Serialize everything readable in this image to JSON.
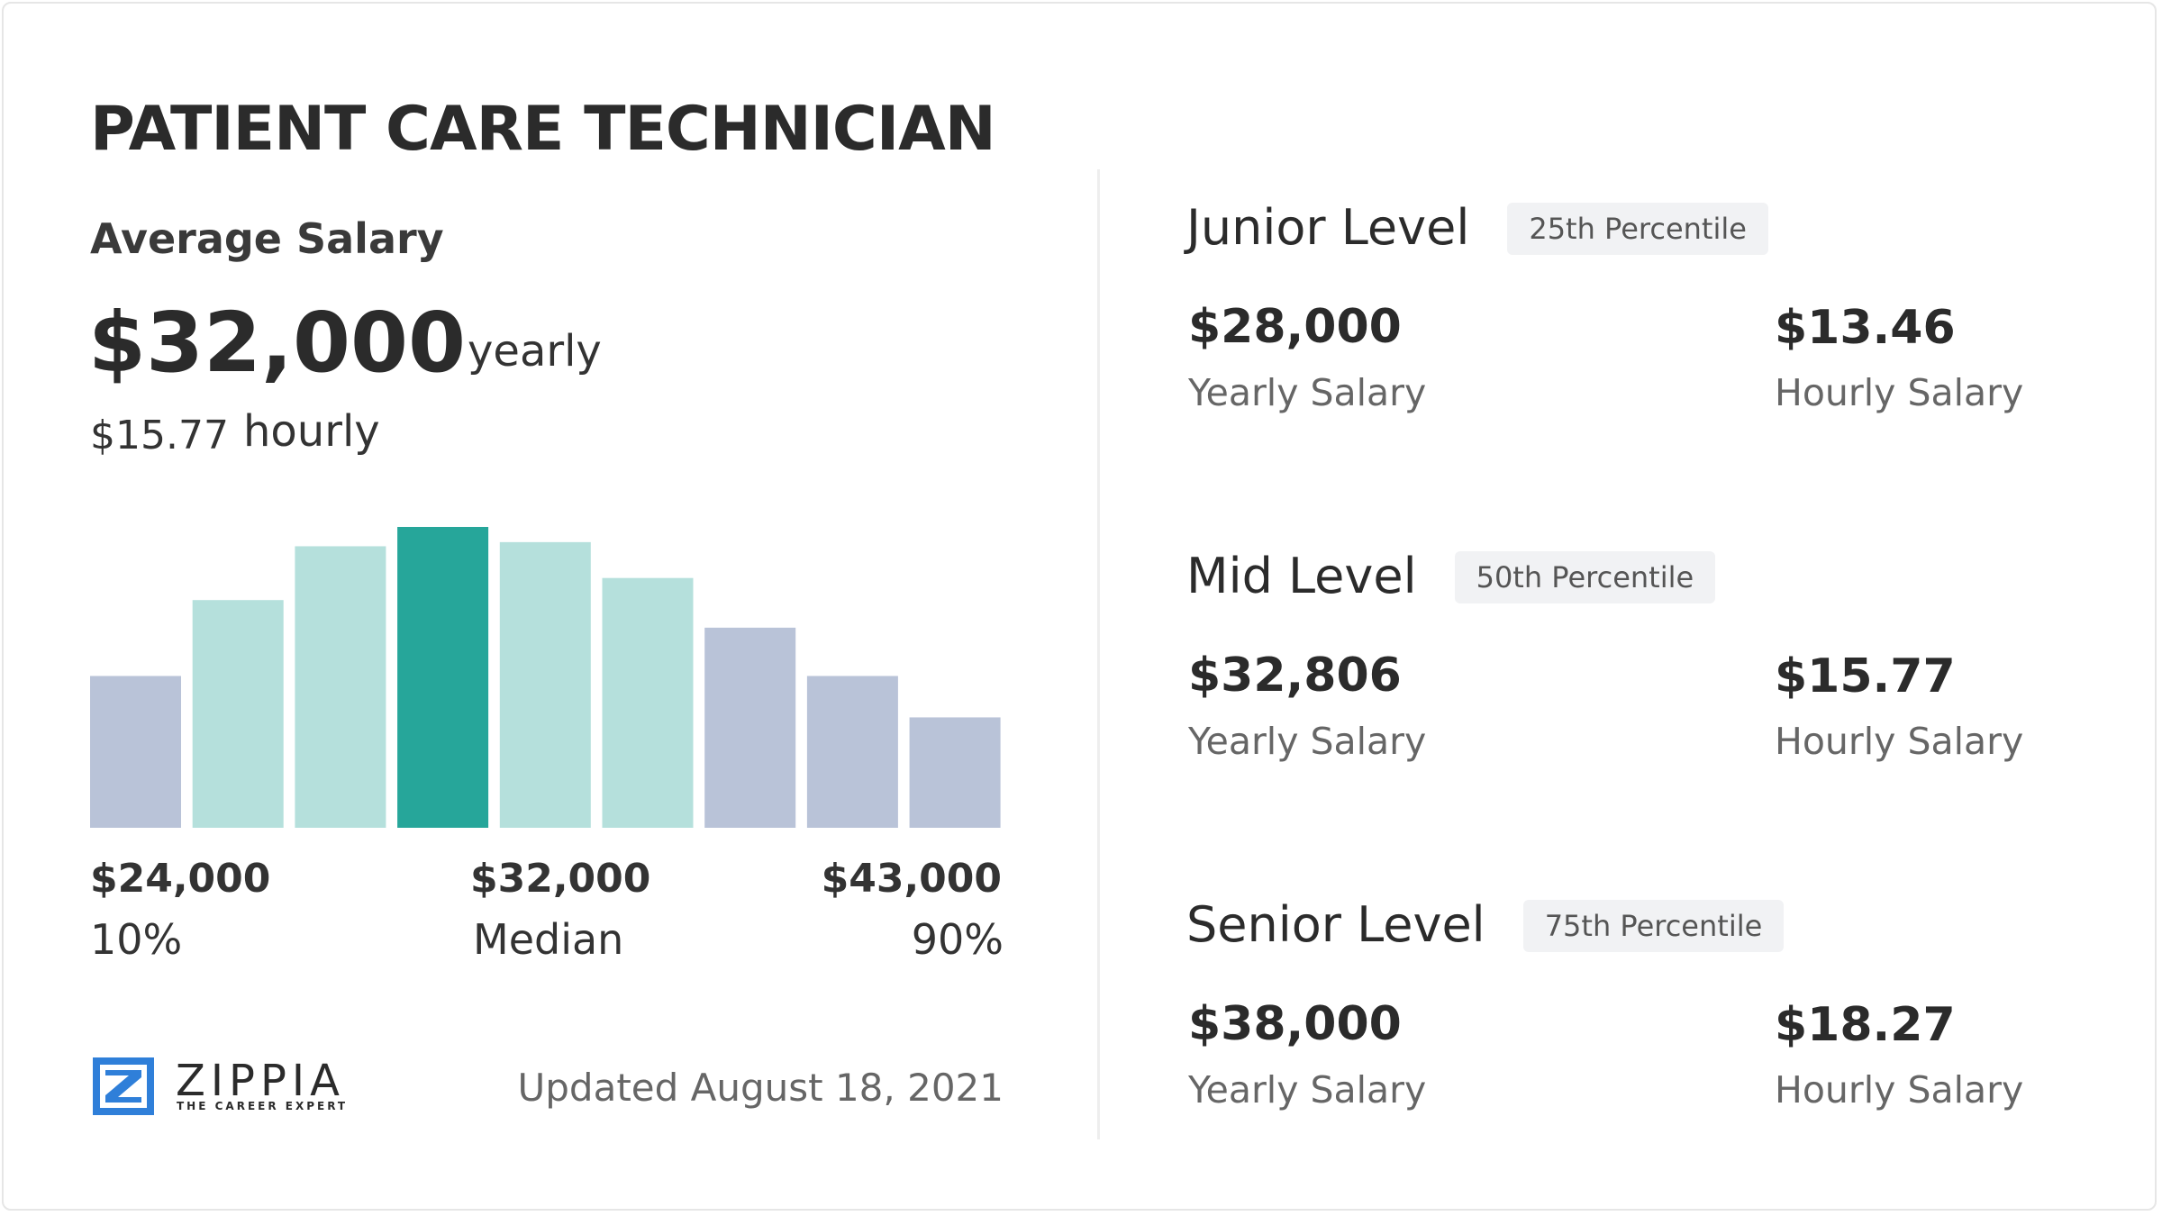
{
  "header": {
    "title": "PATIENT CARE TECHNICIAN"
  },
  "average": {
    "label": "Average Salary",
    "yearly_value": "$32,000",
    "yearly_unit": "yearly",
    "hourly_value": "$15.77",
    "hourly_unit": "hourly"
  },
  "chart_data": {
    "type": "bar",
    "values": [
      110,
      165,
      204,
      218,
      207,
      181,
      145,
      110,
      80
    ],
    "colors": [
      "#b9c3d8",
      "#b5e0dc",
      "#b5e0dc",
      "#26a69a",
      "#b5e0dc",
      "#b5e0dc",
      "#b9c3d8",
      "#b9c3d8",
      "#b9c3d8"
    ],
    "annotations": [
      {
        "amount": "$24,000",
        "label": "10%"
      },
      {
        "amount": "$32,000",
        "label": "Median"
      },
      {
        "amount": "$43,000",
        "label": "90%"
      }
    ]
  },
  "footer": {
    "brand": "ZIPPIA",
    "tagline": "THE CAREER EXPERT",
    "updated": "Updated August 18, 2021"
  },
  "levels": [
    {
      "name": "Junior Level",
      "percentile": "25th Percentile",
      "yearly": "$28,000",
      "yearly_label": "Yearly Salary",
      "hourly": "$13.46",
      "hourly_label": "Hourly Salary"
    },
    {
      "name": "Mid Level",
      "percentile": "50th Percentile",
      "yearly": "$32,806",
      "yearly_label": "Yearly Salary",
      "hourly": "$15.77",
      "hourly_label": "Hourly Salary"
    },
    {
      "name": "Senior Level",
      "percentile": "75th Percentile",
      "yearly": "$38,000",
      "yearly_label": "Yearly Salary",
      "hourly": "$18.27",
      "hourly_label": "Hourly Salary"
    }
  ]
}
